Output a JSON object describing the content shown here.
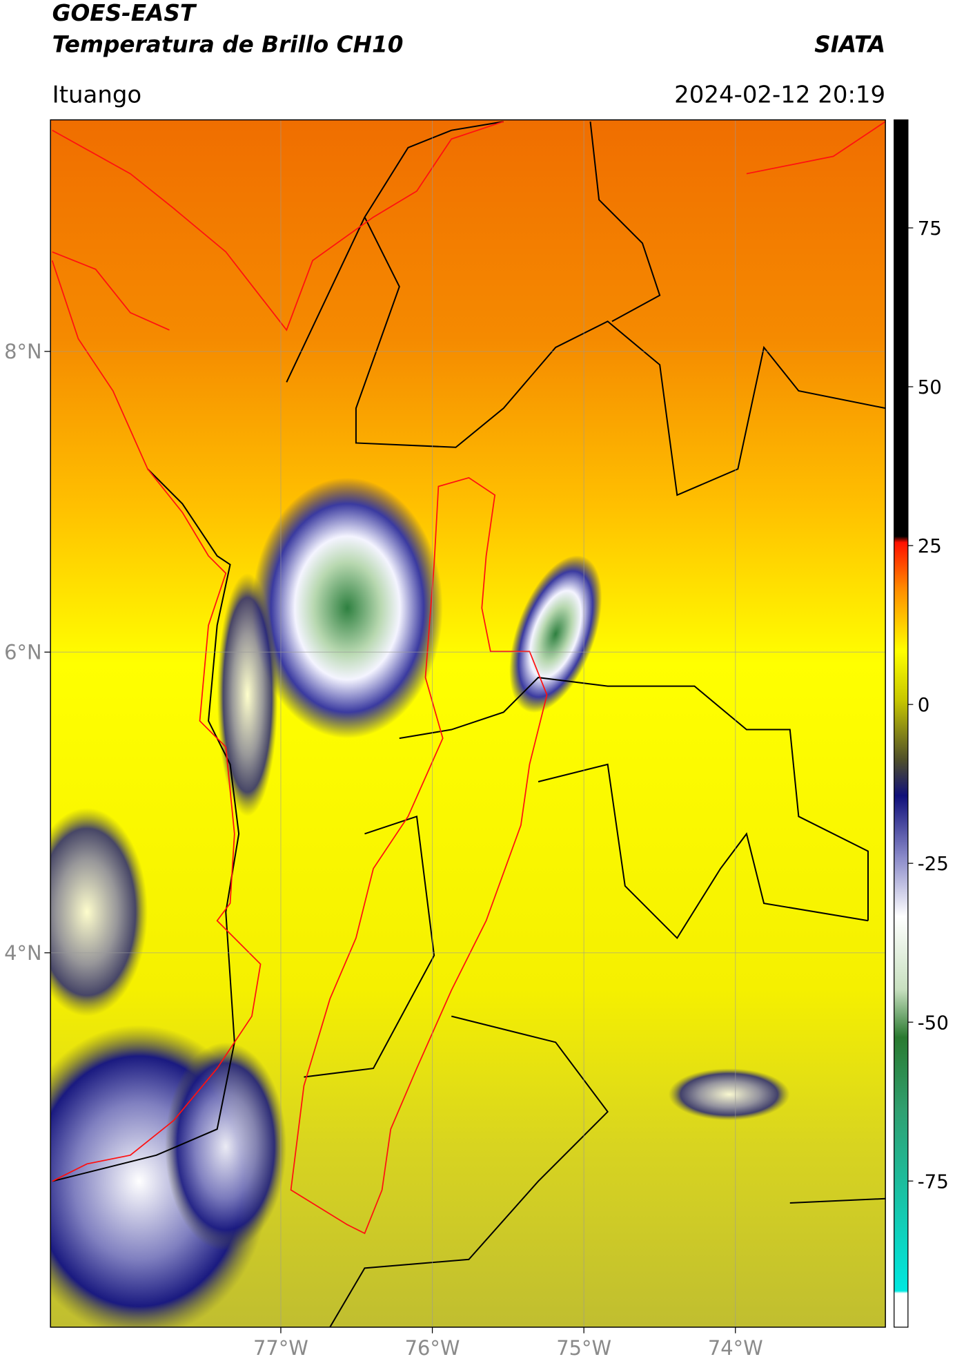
{
  "header": {
    "title": "GOES-EAST",
    "subtitle": "Temperatura de Brillo CH10",
    "brand": "SIATA",
    "location": "Ituango",
    "datetime": "2024-02-12 20:19"
  },
  "map": {
    "xlim": [
      -78.52,
      -73.01
    ],
    "ylim": [
      1.51,
      9.54
    ],
    "xticks": [
      {
        "value": -77,
        "label": "77°W"
      },
      {
        "value": -76,
        "label": "76°W"
      },
      {
        "value": -75,
        "label": "75°W"
      },
      {
        "value": -74,
        "label": "74°W"
      }
    ],
    "yticks": [
      {
        "value": 8,
        "label": "8°N"
      },
      {
        "value": 6,
        "label": "6°N"
      },
      {
        "value": 4,
        "label": "4°N"
      }
    ],
    "grid": true
  },
  "colorbar": {
    "lim": [
      -98,
      92
    ],
    "ticks": [
      75,
      50,
      25,
      0,
      -25,
      -50,
      -75
    ]
  }
}
